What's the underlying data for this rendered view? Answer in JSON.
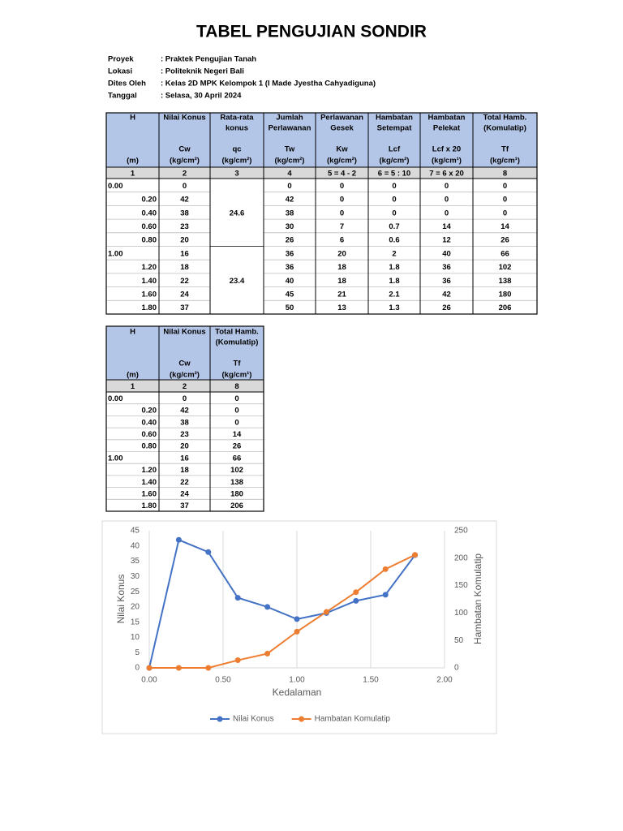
{
  "title": "TABEL PENGUJIAN SONDIR",
  "info": [
    [
      "Proyek",
      ": Praktek Pengujian Tanah"
    ],
    [
      "Lokasi",
      ": Politeknik Negeri Bali"
    ],
    [
      "Dites Oleh",
      ": Kelas 2D MPK Kelompok 1 (I Made Jyestha Cahyadiguna)"
    ],
    [
      "Tanggal",
      ": Selasa, 30 April 2024"
    ]
  ],
  "table1": {
    "headers": [
      {
        "lines": [
          "H"
        ],
        "unit": "(m)"
      },
      {
        "lines": [
          "Nilai Konus"
        ],
        "symbol": "Cw",
        "unit": "(kg/cm²)"
      },
      {
        "lines": [
          "Rata-rata",
          "konus"
        ],
        "symbol": "qc",
        "unit": "(kg/cm²)"
      },
      {
        "lines": [
          "Jumlah",
          "Perlawanan"
        ],
        "symbol": "Tw",
        "unit": "(kg/cm²)"
      },
      {
        "lines": [
          "Perlawanan",
          "Gesek"
        ],
        "symbol": "Kw",
        "unit": "(kg/cm²)"
      },
      {
        "lines": [
          "Hambatan",
          "Setempat"
        ],
        "symbol": "Lcf",
        "unit": "(kg/cm²)"
      },
      {
        "lines": [
          "Hambatan",
          "Pelekat"
        ],
        "symbol": "Lcf x 20",
        "unit": "(kg/cm¹)"
      },
      {
        "lines": [
          "Total Hamb.",
          "(Komulatip)"
        ],
        "symbol": "Tf",
        "unit": "(kg/cm¹)"
      }
    ],
    "index": [
      "1",
      "2",
      "3",
      "4",
      "5 = 4 - 2",
      "6 = 5 : 10",
      "7 = 6 x 20",
      "8"
    ],
    "averages": [
      "24.6",
      "23.4"
    ],
    "rows": [
      [
        "0.00",
        "0",
        "0",
        "0",
        "0",
        "0",
        "0"
      ],
      [
        "0.20",
        "42",
        "42",
        "0",
        "0",
        "0",
        "0"
      ],
      [
        "0.40",
        "38",
        "38",
        "0",
        "0",
        "0",
        "0"
      ],
      [
        "0.60",
        "23",
        "30",
        "7",
        "0.7",
        "14",
        "14"
      ],
      [
        "0.80",
        "20",
        "26",
        "6",
        "0.6",
        "12",
        "26"
      ],
      [
        "1.00",
        "16",
        "36",
        "20",
        "2",
        "40",
        "66"
      ],
      [
        "1.20",
        "18",
        "36",
        "18",
        "1.8",
        "36",
        "102"
      ],
      [
        "1.40",
        "22",
        "40",
        "18",
        "1.8",
        "36",
        "138"
      ],
      [
        "1.60",
        "24",
        "45",
        "21",
        "2.1",
        "42",
        "180"
      ],
      [
        "1.80",
        "37",
        "50",
        "13",
        "1.3",
        "26",
        "206"
      ]
    ]
  },
  "table2": {
    "headers": [
      {
        "lines": [
          "H"
        ],
        "unit": "(m)"
      },
      {
        "lines": [
          "Nilai Konus"
        ],
        "symbol": "Cw",
        "unit": "(kg/cm²)"
      },
      {
        "lines": [
          "Total Hamb.",
          "(Komulatip)"
        ],
        "symbol": "Tf",
        "unit": "(kg/cm¹)"
      }
    ],
    "index": [
      "1",
      "2",
      "8"
    ],
    "rows": [
      [
        "0.00",
        "0",
        "0"
      ],
      [
        "0.20",
        "42",
        "0"
      ],
      [
        "0.40",
        "38",
        "0"
      ],
      [
        "0.60",
        "23",
        "14"
      ],
      [
        "0.80",
        "20",
        "26"
      ],
      [
        "1.00",
        "16",
        "66"
      ],
      [
        "1.20",
        "18",
        "102"
      ],
      [
        "1.40",
        "22",
        "138"
      ],
      [
        "1.60",
        "24",
        "180"
      ],
      [
        "1.80",
        "37",
        "206"
      ]
    ]
  },
  "chart_data": {
    "type": "line",
    "x_label": "Kedalaman",
    "y_label": "Nilai Konus",
    "y2_label": "Hambatan Komulatip",
    "x": [
      0,
      0.2,
      0.4,
      0.6,
      0.8,
      1.0,
      1.2,
      1.4,
      1.6,
      1.8
    ],
    "series": [
      {
        "name": "Nilai Konus",
        "color": "#4472c4",
        "values": [
          0,
          42,
          38,
          23,
          20,
          16,
          18,
          22,
          24,
          37
        ]
      },
      {
        "name": "Hambatan Komulatip",
        "color": "#ed7d31",
        "axis": "y2",
        "values": [
          0,
          0,
          0,
          14,
          26,
          66,
          102,
          138,
          180,
          206
        ]
      }
    ],
    "xlim": [
      0,
      2
    ],
    "xticks": [
      {
        "value": 0,
        "label": "0.00"
      },
      {
        "value": 0.5,
        "label": "0.50"
      },
      {
        "value": 1,
        "label": "1.00"
      },
      {
        "value": 1.5,
        "label": "1.50"
      },
      {
        "value": 2,
        "label": "2.00"
      }
    ],
    "ylim": [
      0,
      45
    ],
    "yticks": [
      0,
      5,
      10,
      15,
      20,
      25,
      30,
      35,
      40,
      45
    ],
    "y2lim": [
      0,
      250
    ],
    "y2ticks": [
      0,
      50,
      100,
      150,
      200,
      250
    ],
    "grid": "x",
    "legend": "bottom"
  }
}
